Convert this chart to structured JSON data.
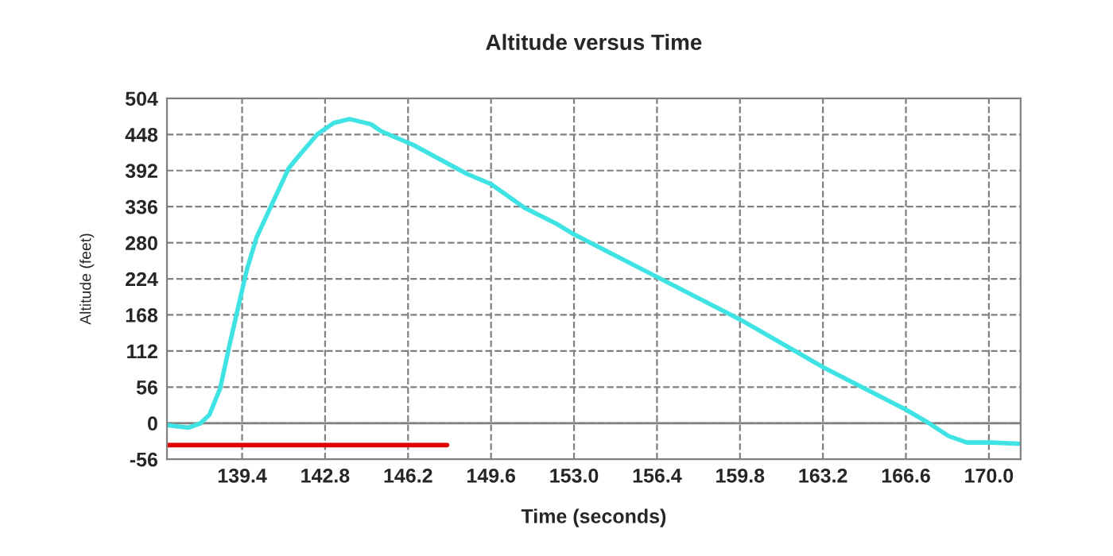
{
  "chart_data": {
    "type": "line",
    "title": "Altitude versus Time",
    "xlabel": "Time (seconds)",
    "ylabel": "Altitude (feet)",
    "series": [
      {
        "color": "#3fe3e3",
        "x": [
          136.32,
          137.2,
          137.7,
          138.06,
          138.5,
          138.9,
          139.25,
          139.6,
          140.0,
          140.55,
          141.3,
          141.75,
          142.5,
          143.16,
          143.8,
          144.68,
          145.1,
          146.4,
          148.6,
          149.6,
          150.98,
          152.3,
          153.0,
          156.4,
          159.8,
          163.2,
          166.6,
          167.5,
          168.35,
          169.1,
          170.1,
          171.3
        ],
        "values": [
          -3,
          -7,
          0,
          13,
          54,
          124,
          182,
          239,
          289,
          334,
          395,
          416,
          449,
          466,
          472,
          464,
          453,
          432,
          387,
          371,
          334,
          309,
          293,
          227,
          161,
          87,
          21,
          1,
          -20,
          -30,
          -30,
          -32
        ]
      },
      {
        "color": "#e00000",
        "x": [
          136.32,
          147.8
        ],
        "values": [
          -34,
          -34
        ]
      }
    ],
    "xlim": [
      136.32,
      171.3
    ],
    "xticks": [
      139.4,
      142.8,
      146.2,
      149.6,
      {
        "value": 153.0,
        "label": "153.0"
      },
      156.4,
      159.8,
      163.2,
      166.6,
      {
        "value": 170.0,
        "label": "170.0"
      }
    ],
    "ylim": [
      -56,
      504
    ],
    "yticks": [
      -56,
      0,
      56,
      112,
      168,
      224,
      280,
      336,
      392,
      448,
      504
    ],
    "ref_lines": [
      {
        "axis": "y",
        "value": 0,
        "color": "#808080",
        "line_style": "solid"
      }
    ],
    "grid": true,
    "line_style": "solid",
    "marker": "none"
  }
}
